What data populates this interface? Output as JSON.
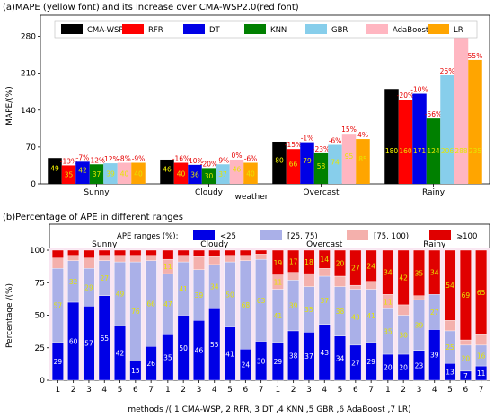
{
  "chart_data": [
    {
      "type": "bar",
      "title": "(a)MAPE (yellow font) and its increase over CMA-WSP2.0(red font)",
      "xlabel": "weather",
      "ylabel": "MAPE/(%)",
      "ylim": [
        0,
        320
      ],
      "yticks": [
        0,
        70,
        140,
        210,
        280
      ],
      "legend_position": "top",
      "categories": [
        "Sunny",
        "Cloudy",
        "Overcast",
        "Rainy"
      ],
      "series": [
        {
          "name": "CMA-WSP",
          "color": "#000000",
          "values": [
            49,
            46,
            80,
            180
          ],
          "labels": [
            "49",
            "46",
            "80",
            "180"
          ],
          "increase": [
            "",
            "",
            "",
            ""
          ]
        },
        {
          "name": "RFR",
          "color": "#ff0000",
          "values": [
            35,
            40,
            66,
            160
          ],
          "labels": [
            "35",
            "40",
            "66",
            "160"
          ],
          "increase": [
            "-13%",
            "-16%",
            "-15%",
            "-20%"
          ]
        },
        {
          "name": "DT",
          "color": "#0000e6",
          "values": [
            42,
            36,
            79,
            171
          ],
          "labels": [
            "42",
            "36",
            "79",
            "171"
          ],
          "increase": [
            "-7%",
            "-10%",
            "-1%",
            "-10%"
          ]
        },
        {
          "name": "KNN",
          "color": "#008000",
          "values": [
            37,
            30,
            58,
            124
          ],
          "labels": [
            "37",
            "30",
            "58",
            "124"
          ],
          "increase": [
            "-12%",
            "-20%",
            "-23%",
            "-56%"
          ]
        },
        {
          "name": "GBR",
          "color": "#87ceeb",
          "values": [
            39,
            37,
            74,
            206
          ],
          "labels": [
            "39",
            "37",
            "74",
            "206"
          ],
          "increase": [
            "-12%",
            "-9%",
            "-6%",
            "26%"
          ]
        },
        {
          "name": "AdaBoost",
          "color": "#ffb6c1",
          "values": [
            40,
            46,
            95,
            288
          ],
          "labels": [
            "40",
            "46",
            "95",
            "288"
          ],
          "increase": [
            "-8%",
            "0%",
            "15%",
            "108%"
          ]
        },
        {
          "name": "LR",
          "color": "#ffa500",
          "values": [
            40,
            40,
            85,
            235
          ],
          "labels": [
            "40",
            "40",
            "85",
            "235"
          ],
          "increase": [
            "-9%",
            "-6%",
            "4%",
            "55%"
          ]
        }
      ]
    },
    {
      "type": "bar",
      "stacked": true,
      "title": "(b)Percentage of APE in different ranges",
      "xlabel": "methods /( 1  CMA-WSP, 2  RFR, 3 DT ,4 KNN ,5 GBR ,6 AdaBoost ,7 LR)",
      "ylabel": "Percentage /(%)",
      "ylim": [
        0,
        100
      ],
      "yticks": [
        0,
        25,
        50,
        75,
        100
      ],
      "legend_title": "APE ranges (%):",
      "legend_position": "top",
      "groups": [
        "Sunny",
        "Cloudy",
        "Overcast",
        "Rainy"
      ],
      "methods": [
        "1",
        "2",
        "3",
        "4",
        "5",
        "6",
        "7"
      ],
      "ranges": [
        {
          "name": "<25",
          "color": "#0000e6",
          "label_color": "#ffffff"
        },
        {
          "name": "[25, 75)",
          "color": "#aab0e8",
          "label_color": "#e6e600"
        },
        {
          "name": "[75, 100)",
          "color": "#f4b0ac",
          "label_color": "#e6e600"
        },
        {
          "name": "⩾100",
          "color": "#e00000",
          "label_color": "#e6e600"
        }
      ],
      "data": {
        "Sunny": [
          [
            29,
            57,
            8,
            6
          ],
          [
            60,
            32,
            4,
            4
          ],
          [
            57,
            29,
            8,
            6
          ],
          [
            65,
            27,
            4,
            4
          ],
          [
            42,
            49,
            5,
            4
          ],
          [
            15,
            76,
            5,
            4
          ],
          [
            26,
            66,
            4,
            4
          ]
        ],
        "Cloudy": [
          [
            35,
            47,
            11,
            7
          ],
          [
            50,
            41,
            5,
            4
          ],
          [
            46,
            39,
            10,
            5
          ],
          [
            55,
            34,
            6,
            5
          ],
          [
            41,
            50,
            5,
            4
          ],
          [
            24,
            68,
            4,
            4
          ],
          [
            30,
            63,
            4,
            3
          ]
        ],
        "Overcast": [
          [
            29,
            41,
            11,
            19
          ],
          [
            38,
            39,
            6,
            17
          ],
          [
            37,
            35,
            10,
            18
          ],
          [
            43,
            37,
            6,
            14
          ],
          [
            34,
            38,
            8,
            20
          ],
          [
            27,
            43,
            3,
            27
          ],
          [
            29,
            41,
            6,
            24
          ]
        ],
        "Rainy": [
          [
            20,
            35,
            11,
            34
          ],
          [
            20,
            30,
            8,
            42
          ],
          [
            23,
            39,
            3,
            35
          ],
          [
            39,
            27,
            0,
            34
          ],
          [
            13,
            25,
            8,
            54
          ],
          [
            7,
            20,
            4,
            69
          ],
          [
            11,
            16,
            8,
            65
          ]
        ]
      },
      "labels": {
        "Sunny": [
          [
            "29",
            "57",
            "",
            ""
          ],
          [
            "60",
            "32",
            "",
            ""
          ],
          [
            "57",
            "29",
            "",
            ""
          ],
          [
            "65",
            "27",
            "",
            ""
          ],
          [
            "42",
            "49",
            "",
            ""
          ],
          [
            "15",
            "76",
            "",
            ""
          ],
          [
            "26",
            "66",
            "",
            ""
          ]
        ],
        "Cloudy": [
          [
            "35",
            "47",
            "11",
            ""
          ],
          [
            "50",
            "41",
            "",
            ""
          ],
          [
            "46",
            "39",
            "",
            ""
          ],
          [
            "55",
            "34",
            "",
            ""
          ],
          [
            "41",
            "50",
            "",
            ""
          ],
          [
            "24",
            "68",
            "",
            ""
          ],
          [
            "30",
            "63",
            "",
            ""
          ]
        ],
        "Overcast": [
          [
            "29",
            "41",
            "11",
            "19"
          ],
          [
            "38",
            "39",
            "",
            "17"
          ],
          [
            "37",
            "35",
            "",
            "18"
          ],
          [
            "43",
            "37",
            "",
            "14"
          ],
          [
            "34",
            "38",
            "",
            "20"
          ],
          [
            "27",
            "43",
            "",
            "27"
          ],
          [
            "29",
            "41",
            "",
            "24"
          ]
        ],
        "Rainy": [
          [
            "20",
            "35",
            "11",
            "34"
          ],
          [
            "20",
            "30",
            "",
            "42"
          ],
          [
            "23",
            "39",
            "",
            "35"
          ],
          [
            "39",
            "27",
            "",
            "34"
          ],
          [
            "13",
            "25",
            "",
            "54"
          ],
          [
            "7",
            "20",
            "",
            "69"
          ],
          [
            "11",
            "16",
            "",
            "65"
          ]
        ]
      }
    }
  ]
}
